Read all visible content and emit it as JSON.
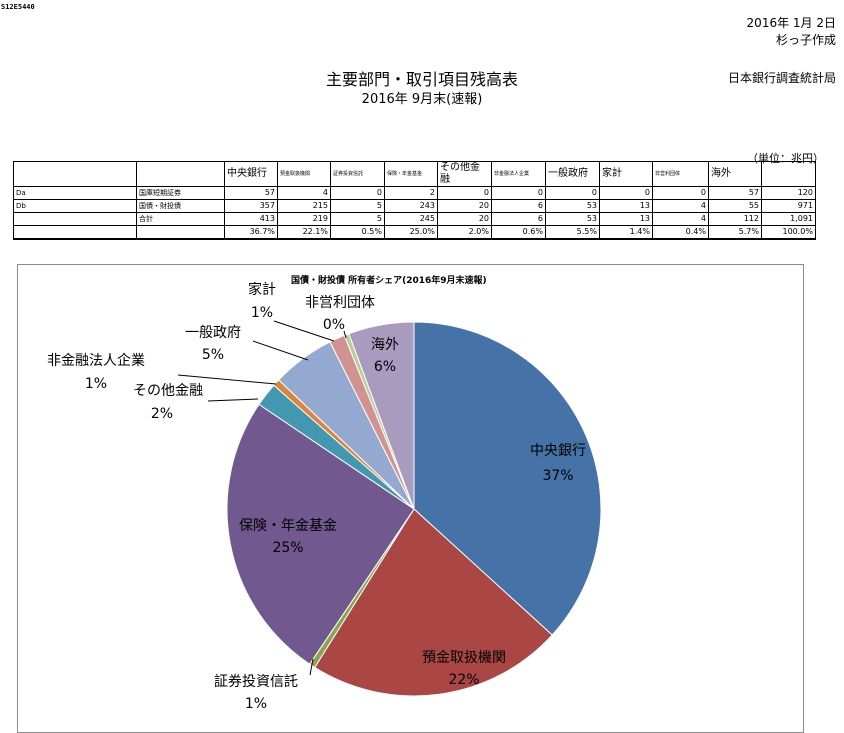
{
  "header": {
    "code": "S12E5440",
    "date": "2016年 1月 2日",
    "author": "杉っ子作成",
    "department": "日本銀行調査統計局",
    "title": "主要部門・取引項目残高表",
    "subtitle": "2016年  9月末(速報)",
    "unit": "（単位：兆円）"
  },
  "table": {
    "columns": [
      "中央銀行",
      "預金取扱機関",
      "証券投資信託",
      "保険・年金基金",
      "その他金融",
      "非金融法人企業",
      "一般政府",
      "家計",
      "非営利団体",
      "海外",
      ""
    ],
    "rows": [
      {
        "code": "Da",
        "label": "国庫短期証券",
        "values": [
          "57",
          "4",
          "0",
          "2",
          "0",
          "0",
          "0",
          "0",
          "0",
          "57",
          "120"
        ]
      },
      {
        "code": "Db",
        "label": "国債・財投債",
        "values": [
          "357",
          "215",
          "5",
          "243",
          "20",
          "6",
          "53",
          "13",
          "4",
          "55",
          "971"
        ]
      },
      {
        "code": "",
        "label": "合計",
        "values": [
          "413",
          "219",
          "5",
          "245",
          "20",
          "6",
          "53",
          "13",
          "4",
          "112",
          "1,091"
        ]
      },
      {
        "code": "",
        "label": "",
        "values": [
          "36.7%",
          "22.1%",
          "0.5%",
          "25.0%",
          "2.0%",
          "0.6%",
          "5.5%",
          "1.4%",
          "0.4%",
          "5.7%",
          "100.0%"
        ]
      }
    ]
  },
  "chart_data": {
    "type": "pie",
    "title": "国債・財投債 所有者シェア(2016年9月末速報)",
    "slices": [
      {
        "name": "中央銀行",
        "value": 357,
        "percent": "37%",
        "color": "#4572a7"
      },
      {
        "name": "預金取扱機関",
        "value": 215,
        "percent": "22%",
        "color": "#aa4643"
      },
      {
        "name": "証券投資信託",
        "value": 5,
        "percent": "1%",
        "color": "#89a54e"
      },
      {
        "name": "保険・年金基金",
        "value": 243,
        "percent": "25%",
        "color": "#71588f"
      },
      {
        "name": "その他金融",
        "value": 20,
        "percent": "2%",
        "color": "#4198af"
      },
      {
        "name": "非金融法人企業",
        "value": 6,
        "percent": "1%",
        "color": "#db843d"
      },
      {
        "name": "一般政府",
        "value": 53,
        "percent": "5%",
        "color": "#93a9cf"
      },
      {
        "name": "家計",
        "value": 13,
        "percent": "1%",
        "color": "#d19392"
      },
      {
        "name": "非営利団体",
        "value": 4,
        "percent": "0%",
        "color": "#b9cd96"
      },
      {
        "name": "海外",
        "value": 55,
        "percent": "6%",
        "color": "#a99bbd"
      }
    ]
  }
}
